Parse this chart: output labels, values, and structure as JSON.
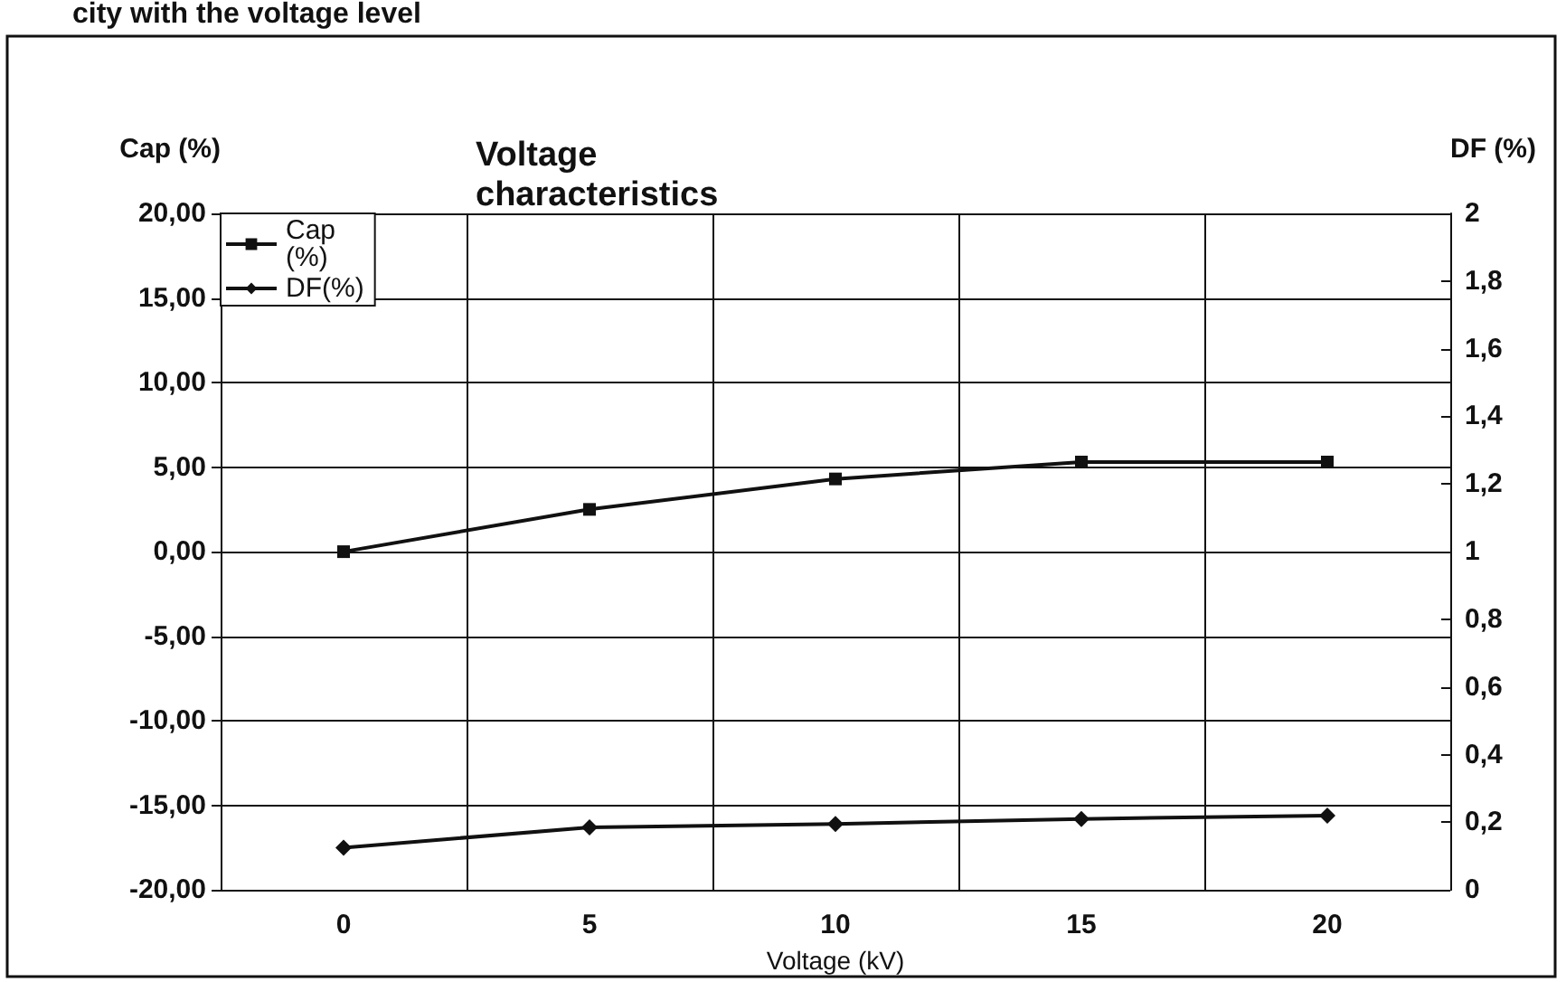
{
  "chart_data": {
    "type": "line",
    "title": "Voltage characteristics",
    "xlabel": "Voltage (kV)",
    "ylabel": "Cap (%)",
    "y2label": "DF (%)",
    "annotations": [
      "city with the voltage level"
    ],
    "categories": [
      "0",
      "5",
      "10",
      "15",
      "20"
    ],
    "series": [
      {
        "name": "Cap (%)",
        "color": "#111111",
        "marker": "square",
        "values": [
          0.0,
          2.5,
          4.3,
          5.3,
          5.3
        ]
      },
      {
        "name": "DF(%)",
        "color": "#111111",
        "marker": "diamond",
        "axis": "y2",
        "values": [
          0.125,
          0.185,
          0.195,
          0.21,
          0.22
        ]
      }
    ],
    "ylim": [
      -20,
      20
    ],
    "yticks": [
      {
        "value": -20,
        "label": "-20,00"
      },
      {
        "value": -15,
        "label": "-15,00"
      },
      {
        "value": -10,
        "label": "-10,00"
      },
      {
        "value": -5,
        "label": "-5,00"
      },
      {
        "value": 0,
        "label": "0,00"
      },
      {
        "value": 5,
        "label": "5,00"
      },
      {
        "value": 10,
        "label": "10,00"
      },
      {
        "value": 15,
        "label": "15,00"
      },
      {
        "value": 20,
        "label": "20,00"
      }
    ],
    "y2lim": [
      0,
      2
    ],
    "y2ticks": [
      0,
      {
        "value": 0.2,
        "label": "0,2"
      },
      {
        "value": 0.4,
        "label": "0,4"
      },
      {
        "value": 0.6,
        "label": "0,6"
      },
      {
        "value": 0.8,
        "label": "0,8"
      },
      1,
      {
        "value": 1.2,
        "label": "1,2"
      },
      {
        "value": 1.4,
        "label": "1,4"
      },
      {
        "value": 1.6,
        "label": "1,6"
      },
      {
        "value": 1.8,
        "label": "1,8"
      },
      2
    ],
    "grid": true,
    "legend": "top left",
    "line_style": "solid"
  }
}
